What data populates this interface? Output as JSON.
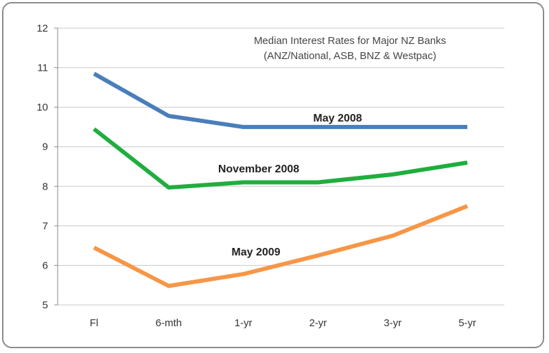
{
  "chart_data": {
    "type": "line",
    "title": "Median Interest Rates for Major NZ Banks",
    "subtitle": "(ANZ/National, ASB, BNZ & Westpac)",
    "xlabel": "",
    "ylabel": "",
    "categories": [
      "Fl",
      "6-mth",
      "1-yr",
      "2-yr",
      "3-yr",
      "5-yr"
    ],
    "ylim": [
      5,
      12
    ],
    "yticks": [
      5,
      6,
      7,
      8,
      9,
      10,
      11,
      12
    ],
    "grid": true,
    "series": [
      {
        "name": "May 2008",
        "color": "#4a7ebb",
        "values": [
          10.85,
          9.78,
          9.5,
          9.5,
          9.5,
          9.5
        ]
      },
      {
        "name": "November 2008",
        "color": "#1fae3e",
        "values": [
          9.45,
          7.97,
          8.1,
          8.1,
          8.3,
          8.6
        ]
      },
      {
        "name": "May 2009",
        "color": "#f79646",
        "values": [
          6.45,
          5.48,
          5.78,
          6.25,
          6.75,
          7.5
        ]
      }
    ]
  }
}
